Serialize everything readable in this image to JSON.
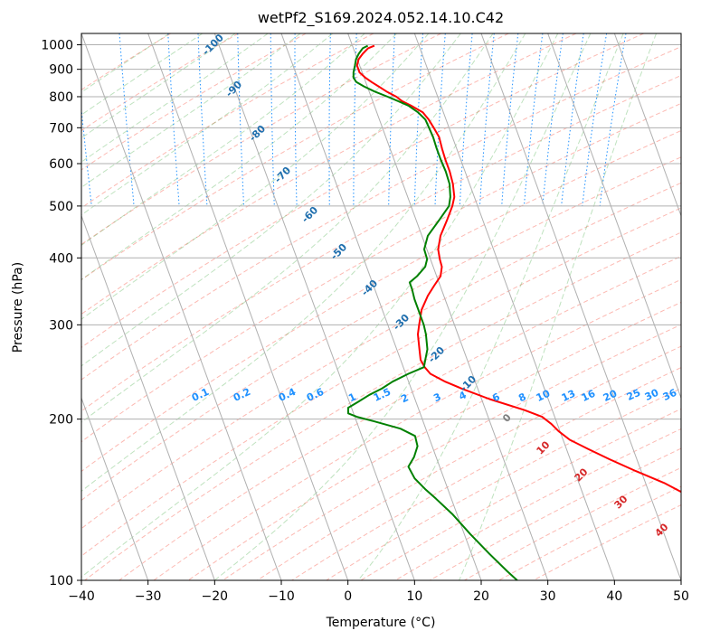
{
  "chart_data": {
    "type": "line",
    "title": "wetPf2_S169.2024.052.14.10.C42",
    "xlabel": "Temperature (°C)",
    "ylabel": "Pressure (hPa)",
    "xlim": [
      -40,
      50
    ],
    "ylim": [
      1050,
      100
    ],
    "y_scale": "log",
    "x_ticks": [
      -40,
      -30,
      -20,
      -10,
      0,
      10,
      20,
      30,
      40,
      50
    ],
    "y_ticks": [
      1000,
      900,
      800,
      700,
      600,
      500,
      400,
      300,
      200,
      100
    ],
    "grid": true,
    "skew_isotherms": true,
    "background_lines": {
      "dry_adiabat_labels": [
        "-100",
        "-90",
        "-80",
        "-70",
        "-60",
        "-50",
        "-40",
        "-30",
        "-20",
        "-10"
      ],
      "mixing_ratio_labels": [
        "0.1",
        "0.2",
        "0.4",
        "0.6",
        "1",
        "1.5",
        "2",
        "3",
        "4",
        "6",
        "8",
        "10",
        "13",
        "16",
        "20",
        "25",
        "30",
        "36"
      ],
      "moist_adiabat_labels": [
        "0",
        "10",
        "20",
        "30",
        "40"
      ]
    },
    "series": [
      {
        "color": "#ff0000",
        "points": [
          [
            996,
            3.3
          ],
          [
            985,
            2.2
          ],
          [
            962,
            1.1
          ],
          [
            940,
            0.2
          ],
          [
            915,
            -0.4
          ],
          [
            888,
            -0.4
          ],
          [
            868,
            0.2
          ],
          [
            852,
            0.9
          ],
          [
            836,
            1.7
          ],
          [
            818,
            2.6
          ],
          [
            800,
            3.8
          ],
          [
            785,
            4.4
          ],
          [
            770,
            5.5
          ],
          [
            748,
            6.9
          ],
          [
            725,
            7.4
          ],
          [
            700,
            7.7
          ],
          [
            672,
            8.0
          ],
          [
            640,
            7.8
          ],
          [
            610,
            7.7
          ],
          [
            580,
            7.7
          ],
          [
            550,
            7.5
          ],
          [
            520,
            7.0
          ],
          [
            500,
            6.2
          ],
          [
            470,
            4.6
          ],
          [
            440,
            2.8
          ],
          [
            415,
            1.7
          ],
          [
            398,
            1.4
          ],
          [
            385,
            1.3
          ],
          [
            370,
            0.6
          ],
          [
            355,
            -0.9
          ],
          [
            340,
            -2.4
          ],
          [
            320,
            -4.1
          ],
          [
            300,
            -5.3
          ],
          [
            288,
            -6.0
          ],
          [
            270,
            -6.6
          ],
          [
            258,
            -7.0
          ],
          [
            250,
            -6.8
          ],
          [
            243,
            -6.3
          ],
          [
            235,
            -4.5
          ],
          [
            228,
            -2.4
          ],
          [
            218,
            1.2
          ],
          [
            208,
            5.8
          ],
          [
            202,
            8.1
          ],
          [
            196,
            9.1
          ],
          [
            190,
            9.8
          ],
          [
            183,
            11.0
          ],
          [
            176,
            13.2
          ],
          [
            168,
            16.0
          ],
          [
            160,
            19.2
          ],
          [
            152,
            22.8
          ],
          [
            143,
            26.1
          ],
          [
            133,
            29.6
          ],
          [
            122,
            32.0
          ],
          [
            110,
            33.1
          ],
          [
            100,
            34.3
          ]
        ]
      },
      {
        "color": "#008000",
        "points": [
          [
            996,
            2.3
          ],
          [
            985,
            1.4
          ],
          [
            962,
            0.5
          ],
          [
            940,
            -0.2
          ],
          [
            915,
            -0.7
          ],
          [
            888,
            -1.3
          ],
          [
            868,
            -1.6
          ],
          [
            852,
            -1.4
          ],
          [
            836,
            -0.5
          ],
          [
            818,
            0.8
          ],
          [
            800,
            2.5
          ],
          [
            785,
            3.8
          ],
          [
            770,
            5.1
          ],
          [
            748,
            6.2
          ],
          [
            725,
            6.9
          ],
          [
            700,
            7.0
          ],
          [
            672,
            7.1
          ],
          [
            640,
            7.0
          ],
          [
            610,
            7.0
          ],
          [
            580,
            7.1
          ],
          [
            550,
            7.0
          ],
          [
            520,
            6.4
          ],
          [
            500,
            5.7
          ],
          [
            470,
            3.4
          ],
          [
            440,
            0.9
          ],
          [
            415,
            -0.4
          ],
          [
            398,
            -0.5
          ],
          [
            385,
            -1.2
          ],
          [
            370,
            -2.9
          ],
          [
            360,
            -4.4
          ],
          [
            350,
            -4.4
          ],
          [
            335,
            -4.6
          ],
          [
            320,
            -4.6
          ],
          [
            300,
            -4.6
          ],
          [
            288,
            -4.8
          ],
          [
            270,
            -5.4
          ],
          [
            258,
            -6.3
          ],
          [
            250,
            -6.9
          ],
          [
            243,
            -9.6
          ],
          [
            235,
            -12.4
          ],
          [
            228,
            -14.4
          ],
          [
            222,
            -16.6
          ],
          [
            215,
            -18.8
          ],
          [
            210,
            -20.5
          ],
          [
            205,
            -20.8
          ],
          [
            202,
            -19.7
          ],
          [
            198,
            -17.3
          ],
          [
            192,
            -13.8
          ],
          [
            186,
            -12.0
          ],
          [
            178,
            -12.2
          ],
          [
            170,
            -13.3
          ],
          [
            163,
            -14.7
          ],
          [
            155,
            -14.4
          ],
          [
            148,
            -13.4
          ],
          [
            142,
            -12.3
          ],
          [
            133,
            -10.7
          ],
          [
            122,
            -9.1
          ],
          [
            112,
            -7.3
          ],
          [
            104,
            -5.6
          ],
          [
            100,
            -4.6
          ]
        ]
      }
    ]
  }
}
